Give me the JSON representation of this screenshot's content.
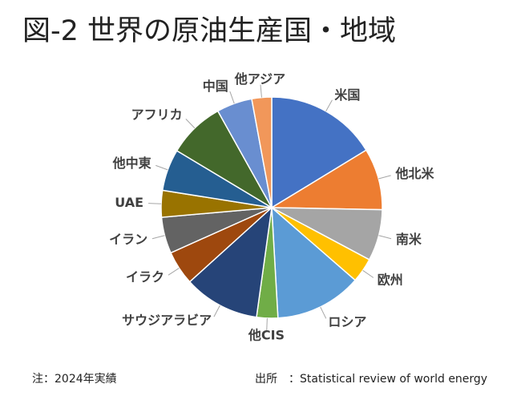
{
  "chart_data": {
    "type": "pie",
    "title": "図-2 世界の原油生産国・地域",
    "categories": [
      "米国",
      "他北米",
      "南米",
      "欧州",
      "ロシア",
      "他CIS",
      "サウジアラビア",
      "イラク",
      "イラン",
      "UAE",
      "他中東",
      "アフリカ",
      "中国",
      "他アジア"
    ],
    "values": [
      16.3,
      9.0,
      7.5,
      3.6,
      12.7,
      3.1,
      11.1,
      5.0,
      5.3,
      3.9,
      6.1,
      8.3,
      5.2,
      2.9
    ],
    "colors": [
      "#4472c4",
      "#ed7d31",
      "#a5a5a5",
      "#ffc000",
      "#5b9bd5",
      "#70ad47",
      "#264478",
      "#9e480e",
      "#636363",
      "#997300",
      "#255e91",
      "#43682b",
      "#698ed0",
      "#f1975a"
    ],
    "note": "注：2024年実績",
    "source": "出所　：Statistical  review of world energy"
  }
}
